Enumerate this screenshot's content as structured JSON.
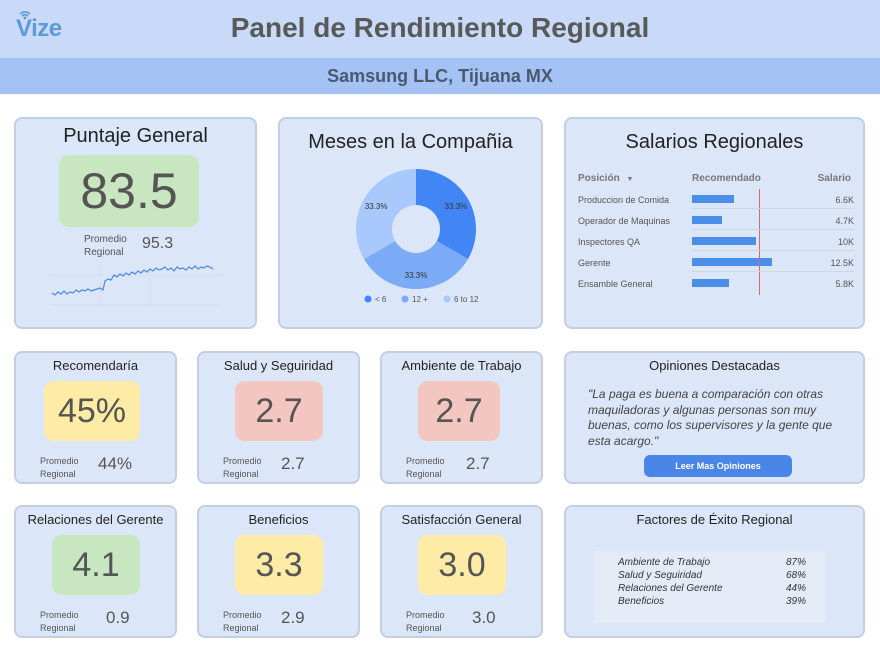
{
  "header": {
    "logo_text": "Vize",
    "title": "Panel de Rendimiento Regional",
    "subtitle": "Samsung LLC, Tijuana MX"
  },
  "overall": {
    "title": "Puntaje General",
    "score": "83.5",
    "avg_label_1": "Promedio",
    "avg_label_2": "Regional",
    "avg_value": "95.3",
    "color": "#c8e6c0"
  },
  "chart_data": {
    "type": "pie",
    "title": "Meses en la Compañia",
    "categories": [
      "< 6",
      "12 +",
      "6 to 12"
    ],
    "values": [
      33.3,
      33.3,
      33.3
    ],
    "value_labels": [
      "33.3%",
      "33.3%",
      "33.3%"
    ],
    "colors": [
      "#4285f4",
      "#7baaf7",
      "#a9c8fb"
    ],
    "legend": "bottom"
  },
  "salaries": {
    "title": "Salarios Regionales",
    "col_position": "Posición",
    "col_recommended": "Recomendado",
    "col_salary": "Salario",
    "sort_icon": "caret-down-icon",
    "rows": [
      {
        "position": "Produccion de Comida",
        "salary": "6.6K",
        "value": 6.6
      },
      {
        "position": "Operador de Maquinas",
        "salary": "4.7K",
        "value": 4.7
      },
      {
        "position": "Inspectores QA",
        "salary": "10K",
        "value": 10
      },
      {
        "position": "Gerente",
        "salary": "12.5K",
        "value": 12.5
      },
      {
        "position": "Ensamble General",
        "salary": "5.8K",
        "value": 5.8
      }
    ],
    "bar_color": "#4a8ee8",
    "marker_color": "#e06666"
  },
  "metrics": [
    {
      "title": "Recomendaría",
      "score": "45%",
      "avg_label_1": "Promedio",
      "avg_label_2": "Regional",
      "avg_value": "44%",
      "color": "#fdeba6"
    },
    {
      "title": "Salud y Seguiridad",
      "score": "2.7",
      "avg_label_1": "Promedio",
      "avg_label_2": "Regional",
      "avg_value": "2.7",
      "color": "#f4c6c0"
    },
    {
      "title": "Ambiente de Trabajo",
      "score": "2.7",
      "avg_label_1": "Promedio",
      "avg_label_2": "Regional",
      "avg_value": "2.7",
      "color": "#f4c6c0"
    },
    {
      "title": "Relaciones del Gerente",
      "score": "4.1",
      "avg_label_1": "Promedio",
      "avg_label_2": "Regional",
      "avg_value": "0.9",
      "color": "#c8e6c0"
    },
    {
      "title": "Beneficios",
      "score": "3.3",
      "avg_label_1": "Promedio",
      "avg_label_2": "Regional",
      "avg_value": "2.9",
      "color": "#fdeba6"
    },
    {
      "title": "Satisfacción General",
      "score": "3.0",
      "avg_label_1": "Promedio",
      "avg_label_2": "Regional",
      "avg_value": "3.0",
      "color": "#fdeba6"
    }
  ],
  "opinions": {
    "title": "Opiniones Destacadas",
    "quote": "\"La paga es buena a comparación con otras maquiladoras y algunas personas son muy buenas, como los supervisores y la gente que esta acargo.\"",
    "button_label": "Leer Mas Opiniones"
  },
  "success_factors": {
    "title": "Factores de Éxito Regional",
    "items": [
      {
        "label": "Ambiente de Trabajo",
        "pct": "87%"
      },
      {
        "label": "Salud y Seguiridad",
        "pct": "68%"
      },
      {
        "label": "Relaciones del Gerente",
        "pct": "44%"
      },
      {
        "label": "Beneficios",
        "pct": "39%"
      }
    ]
  }
}
